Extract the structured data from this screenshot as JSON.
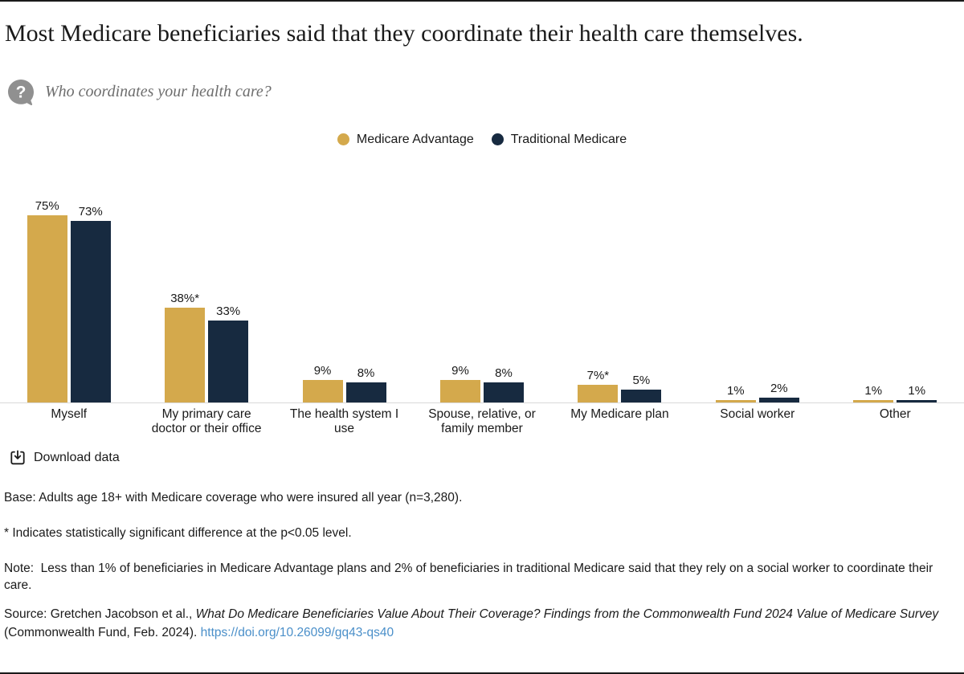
{
  "header": {
    "title": "Most Medicare beneficiaries said that they coordinate their health care themselves.",
    "question": "Who coordinates your health care?"
  },
  "chart_data": {
    "type": "bar",
    "title": "Who coordinates your health care?",
    "unit": "percent",
    "categories": [
      "Myself",
      "My primary care doctor or their office",
      "The health system I use",
      "Spouse, relative, or family member",
      "My Medicare plan",
      "Social worker",
      "Other"
    ],
    "categories_display": [
      [
        "Myself"
      ],
      [
        "My primary care",
        "doctor or their office"
      ],
      [
        "The health system I",
        "use"
      ],
      [
        "Spouse, relative, or",
        "family member"
      ],
      [
        "My Medicare plan"
      ],
      [
        "Social worker"
      ],
      [
        "Other"
      ]
    ],
    "series": [
      {
        "name": "Medicare Advantage",
        "color": "#D4A94C",
        "values": [
          75,
          38,
          9,
          9,
          7,
          1,
          1
        ],
        "labels": [
          "75%",
          "38%*",
          "9%",
          "9%",
          "7%*",
          "1%",
          "1%"
        ]
      },
      {
        "name": "Traditional Medicare",
        "color": "#172A40",
        "values": [
          73,
          33,
          8,
          8,
          5,
          2,
          1
        ],
        "labels": [
          "73%",
          "33%",
          "8%",
          "8%",
          "5%",
          "2%",
          "1%"
        ]
      }
    ],
    "ylim": [
      0,
      80
    ],
    "grid": false,
    "legend_position": "top",
    "value_labels": true
  },
  "toolbar": {
    "download_label": "Download data"
  },
  "notes": {
    "base": "Base: Adults age 18+ with Medicare coverage who were insured all year (n=3,280).",
    "significance": "* Indicates statistically significant difference at the p<0.05 level.",
    "note": "Note:  Less than 1% of beneficiaries in Medicare Advantage plans and 2% of beneficiaries in traditional Medicare said that they rely on a social worker to coordinate their care."
  },
  "source": {
    "prefix": "Source: Gretchen Jacobson et al., ",
    "italic_title": "What Do Medicare Beneficiaries Value About Their Coverage? Findings from the Commonwealth Fund 2024 Value of Medicare Survey",
    "suffix": " (Commonwealth Fund, Feb. 2024). ",
    "link": "https://doi.org/10.26099/gq43-qs40"
  },
  "colors": {
    "accent_gold": "#D4A94C",
    "accent_navy": "#172A40",
    "link_blue": "#4A8FC9",
    "rule_dark": "#1A1A1A",
    "axis_gray": "#D9D9D9",
    "question_gray": "#6E6E6E"
  }
}
